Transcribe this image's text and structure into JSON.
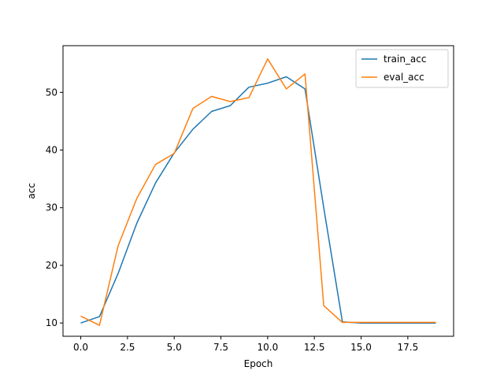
{
  "chart_data": {
    "type": "line",
    "title": "",
    "xlabel": "Epoch",
    "ylabel": "acc",
    "xlim": [
      -0.95,
      19.95
    ],
    "ylim": [
      7.7,
      58.1
    ],
    "x_ticks": [
      0.0,
      2.5,
      5.0,
      7.5,
      10.0,
      12.5,
      15.0,
      17.5
    ],
    "x_tick_labels": [
      "0.0",
      "2.5",
      "5.0",
      "7.5",
      "10.0",
      "12.5",
      "15.0",
      "17.5"
    ],
    "y_ticks": [
      10,
      20,
      30,
      40,
      50
    ],
    "y_tick_labels": [
      "10",
      "20",
      "30",
      "40",
      "50"
    ],
    "grid": false,
    "legend_position": "top-right",
    "x": [
      0,
      1,
      2,
      3,
      4,
      5,
      6,
      7,
      8,
      9,
      10,
      11,
      12,
      13,
      14,
      15,
      16,
      17,
      18,
      19
    ],
    "series": [
      {
        "name": "train_acc",
        "color": "#1f77b4",
        "values": [
          10.0,
          11.1,
          18.6,
          27.3,
          34.3,
          39.5,
          43.6,
          46.7,
          47.7,
          50.9,
          51.6,
          52.7,
          50.6,
          30.0,
          10.2,
          10.0,
          10.0,
          10.0,
          10.0,
          10.0
        ]
      },
      {
        "name": "eval_acc",
        "color": "#ff7f0e",
        "values": [
          11.2,
          9.6,
          23.4,
          31.6,
          37.5,
          39.4,
          47.2,
          49.3,
          48.4,
          49.1,
          55.8,
          50.6,
          53.2,
          13.0,
          10.1,
          10.1,
          10.1,
          10.1,
          10.1,
          10.1
        ]
      }
    ]
  }
}
